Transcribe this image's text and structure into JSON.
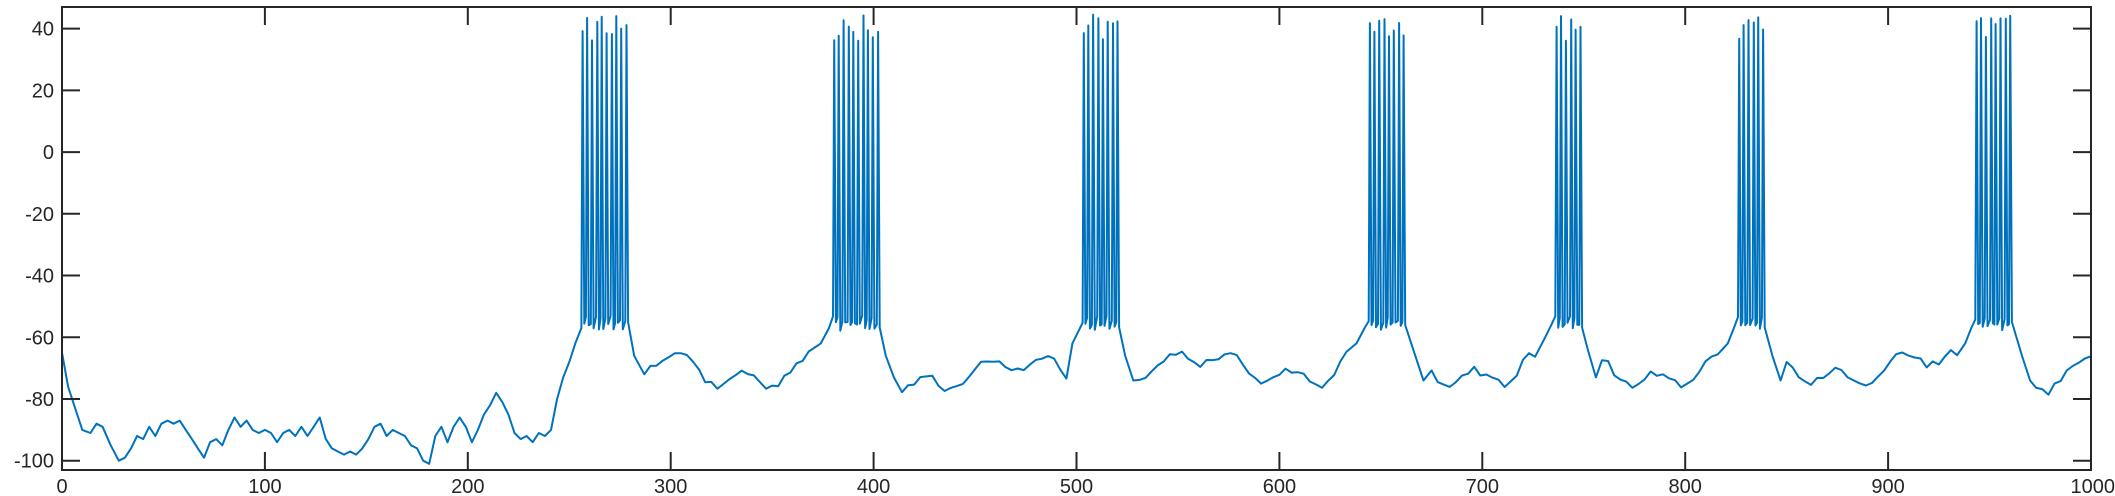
{
  "chart_data": {
    "type": "line",
    "title": "",
    "xlabel": "",
    "ylabel": "",
    "xlim": [
      0,
      1000
    ],
    "ylim": [
      -103,
      47
    ],
    "grid": false,
    "box": true,
    "x_ticks": [
      0,
      100,
      200,
      300,
      400,
      500,
      600,
      700,
      800,
      900,
      1000
    ],
    "y_ticks": [
      -100,
      -80,
      -60,
      -40,
      -20,
      0,
      20,
      40
    ],
    "line_color": "#0072BD",
    "series": [
      {
        "baseline": [
          [
            0,
            -65
          ],
          [
            3,
            -76
          ],
          [
            7,
            -84
          ],
          [
            10,
            -90
          ],
          [
            14,
            -91
          ],
          [
            17,
            -88
          ],
          [
            20,
            -89
          ],
          [
            24,
            -95
          ],
          [
            28,
            -100
          ],
          [
            31,
            -99
          ],
          [
            34,
            -96
          ],
          [
            37,
            -92
          ],
          [
            40,
            -93
          ],
          [
            43,
            -89
          ],
          [
            46,
            -92
          ],
          [
            49,
            -88
          ],
          [
            52,
            -87
          ],
          [
            55,
            -88
          ],
          [
            58,
            -87
          ],
          [
            61,
            -90
          ],
          [
            64,
            -93
          ],
          [
            67,
            -96
          ],
          [
            70,
            -99
          ],
          [
            73,
            -94
          ],
          [
            76,
            -93
          ],
          [
            79,
            -95
          ],
          [
            82,
            -90
          ],
          [
            85,
            -86
          ],
          [
            88,
            -89
          ],
          [
            91,
            -87
          ],
          [
            94,
            -90
          ],
          [
            97,
            -91
          ],
          [
            100,
            -90
          ],
          [
            103,
            -91
          ],
          [
            106,
            -94
          ],
          [
            109,
            -91
          ],
          [
            112,
            -90
          ],
          [
            115,
            -92
          ],
          [
            118,
            -89
          ],
          [
            121,
            -92
          ],
          [
            124,
            -89
          ],
          [
            127,
            -86
          ],
          [
            130,
            -93
          ],
          [
            133,
            -96
          ],
          [
            136,
            -97
          ],
          [
            139,
            -98
          ],
          [
            142,
            -97
          ],
          [
            145,
            -98
          ],
          [
            148,
            -96
          ],
          [
            151,
            -93
          ],
          [
            154,
            -89
          ],
          [
            157,
            -88
          ],
          [
            160,
            -92
          ],
          [
            163,
            -90
          ],
          [
            166,
            -91
          ],
          [
            169,
            -92
          ],
          [
            172,
            -95
          ],
          [
            175,
            -96
          ],
          [
            178,
            -100
          ],
          [
            181,
            -101
          ],
          [
            184,
            -92
          ],
          [
            187,
            -89
          ],
          [
            190,
            -94
          ],
          [
            193,
            -89
          ],
          [
            196,
            -86
          ],
          [
            199,
            -89
          ],
          [
            202,
            -94
          ],
          [
            205,
            -90
          ],
          [
            208,
            -85
          ],
          [
            211,
            -82
          ],
          [
            214,
            -78
          ],
          [
            217,
            -81
          ],
          [
            220,
            -85
          ],
          [
            223,
            -91
          ],
          [
            226,
            -93
          ],
          [
            229,
            -92
          ],
          [
            232,
            -94
          ],
          [
            235,
            -91
          ],
          [
            238,
            -92
          ],
          [
            241,
            -90
          ],
          [
            244,
            -80
          ],
          [
            247,
            -73
          ],
          [
            250,
            -68
          ],
          [
            253,
            -62
          ],
          [
            256,
            -57
          ]
        ]
      }
    ]
  }
}
